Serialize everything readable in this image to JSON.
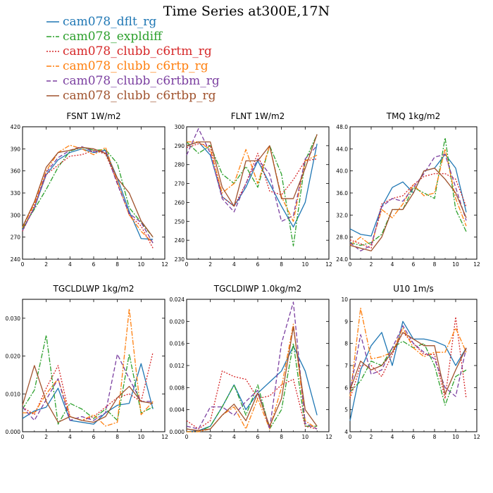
{
  "figure": {
    "title": "Time Series at300E,17N"
  },
  "series": [
    {
      "name": "cam078_dflt_rg",
      "color": "#1f77b4",
      "dash": "solid"
    },
    {
      "name": "cam078_expldiff",
      "color": "#2ca02c",
      "dash": "dashdot"
    },
    {
      "name": "cam078_clubb_c6rtm_rg",
      "color": "#d62728",
      "dash": "dot"
    },
    {
      "name": "cam078_clubb_c6rtp_rg",
      "color": "#ff7f0e",
      "dash": "dashdot"
    },
    {
      "name": "cam078_clubb_c6rtbm_rg",
      "color": "#7b3fa0",
      "dash": "dash"
    },
    {
      "name": "cam078_clubb_c6rtbp_rg",
      "color": "#a0522d",
      "dash": "solid"
    }
  ],
  "chart_data": [
    {
      "type": "line",
      "title": "FSNT   1W/m2",
      "x": [
        0,
        1,
        2,
        3,
        4,
        5,
        6,
        7,
        8,
        9,
        10,
        11
      ],
      "xlim": [
        0,
        12
      ],
      "xticks": [
        "0",
        "2",
        "4",
        "6",
        "8",
        "10",
        "12"
      ],
      "ylim": [
        240,
        420
      ],
      "yticks": [
        "240",
        "270",
        "300",
        "330",
        "360",
        "390",
        "420"
      ],
      "series": [
        {
          "values": [
            280,
            310,
            355,
            375,
            385,
            390,
            385,
            388,
            350,
            305,
            268,
            267
          ]
        },
        {
          "values": [
            282,
            308,
            335,
            365,
            387,
            392,
            388,
            389,
            370,
            310,
            290,
            270
          ]
        },
        {
          "values": [
            278,
            312,
            355,
            368,
            380,
            382,
            388,
            383,
            345,
            300,
            285,
            255
          ]
        },
        {
          "values": [
            283,
            315,
            360,
            385,
            395,
            390,
            382,
            392,
            345,
            300,
            278,
            262
          ]
        },
        {
          "values": [
            279,
            310,
            358,
            378,
            388,
            393,
            386,
            387,
            342,
            302,
            290,
            262
          ]
        },
        {
          "values": [
            284,
            318,
            365,
            385,
            388,
            392,
            390,
            384,
            350,
            330,
            292,
            270
          ]
        }
      ]
    },
    {
      "type": "line",
      "title": "FLNT   1W/m2",
      "x": [
        0,
        1,
        2,
        3,
        4,
        5,
        6,
        7,
        8,
        9,
        10,
        11
      ],
      "xlim": [
        0,
        12
      ],
      "xticks": [
        "0",
        "2",
        "4",
        "6",
        "8",
        "10",
        "12"
      ],
      "ylim": [
        230,
        300
      ],
      "yticks": [
        "230",
        "240",
        "250",
        "260",
        "270",
        "280",
        "290",
        "300"
      ],
      "series": [
        {
          "values": [
            290,
            292,
            285,
            263,
            258,
            268,
            282,
            270,
            258,
            247,
            260,
            291
          ]
        },
        {
          "values": [
            292,
            286,
            290,
            275,
            270,
            279,
            268,
            290,
            275,
            237,
            282,
            296
          ]
        },
        {
          "values": [
            289,
            291,
            290,
            263,
            258,
            270,
            286,
            266,
            264,
            272,
            282,
            283
          ]
        },
        {
          "values": [
            292,
            292,
            288,
            265,
            270,
            288,
            270,
            290,
            263,
            250,
            282,
            285
          ]
        },
        {
          "values": [
            285,
            299,
            286,
            262,
            255,
            270,
            283,
            275,
            250,
            253,
            283,
            290
          ]
        },
        {
          "values": [
            290,
            292,
            292,
            268,
            258,
            282,
            282,
            290,
            262,
            262,
            278,
            296
          ]
        }
      ]
    },
    {
      "type": "line",
      "title": "TMQ   1kg/m2",
      "x": [
        0,
        1,
        2,
        3,
        4,
        5,
        6,
        7,
        8,
        9,
        10,
        11
      ],
      "xlim": [
        0,
        12
      ],
      "xticks": [
        "0",
        "2",
        "4",
        "6",
        "8",
        "10",
        "12"
      ],
      "ylim": [
        24,
        48
      ],
      "yticks": [
        "24.0",
        "28.0",
        "32.0",
        "36.0",
        "40.0",
        "44.0",
        "48.0"
      ],
      "series": [
        {
          "values": [
            29.5,
            28.5,
            28.2,
            33.5,
            37.0,
            38.0,
            36.0,
            40.0,
            40.5,
            43.0,
            40.5,
            32.5
          ]
        },
        {
          "values": [
            27.0,
            26.5,
            27.0,
            28.5,
            33.0,
            33.0,
            37.0,
            36.0,
            35.0,
            46.0,
            33.0,
            29.0
          ]
        },
        {
          "values": [
            27.5,
            26.8,
            26.0,
            34.0,
            35.0,
            35.5,
            37.5,
            39.0,
            39.5,
            39.5,
            38.5,
            33.5
          ]
        },
        {
          "values": [
            26.5,
            28.0,
            26.5,
            33.0,
            31.5,
            34.0,
            37.5,
            35.5,
            36.0,
            44.0,
            35.0,
            30.0
          ]
        },
        {
          "values": [
            27.0,
            25.5,
            26.5,
            33.5,
            35.0,
            34.5,
            37.0,
            39.5,
            42.5,
            43.0,
            37.0,
            31.0
          ]
        },
        {
          "values": [
            26.5,
            26.0,
            25.5,
            28.0,
            33.0,
            33.0,
            36.0,
            40.0,
            40.5,
            38.5,
            36.0,
            31.5
          ]
        }
      ]
    },
    {
      "type": "line",
      "title": "TGCLDLWP   1kg/m2",
      "x": [
        0,
        1,
        2,
        3,
        4,
        5,
        6,
        7,
        8,
        9,
        10,
        11
      ],
      "xlim": [
        0,
        12
      ],
      "xticks": [
        "0",
        "2",
        "4",
        "6",
        "8",
        "10",
        "12"
      ],
      "ylim": [
        0,
        0.035
      ],
      "yticks": [
        "0.000",
        "0.010",
        "0.020",
        "0.030"
      ],
      "series": [
        {
          "values": [
            0.0035,
            0.0055,
            0.0065,
            0.0115,
            0.003,
            0.0025,
            0.002,
            0.005,
            0.007,
            0.0075,
            0.018,
            0.006
          ]
        },
        {
          "values": [
            0.006,
            0.011,
            0.0255,
            0.002,
            0.0075,
            0.006,
            0.0035,
            0.006,
            0.003,
            0.0205,
            0.005,
            0.0065
          ]
        },
        {
          "values": [
            0.0065,
            0.0045,
            0.0115,
            0.0175,
            0.004,
            0.003,
            0.004,
            0.0065,
            0.009,
            0.01,
            0.008,
            0.021
          ]
        },
        {
          "values": [
            0.005,
            0.005,
            0.01,
            0.014,
            0.004,
            0.003,
            0.0045,
            0.0015,
            0.0025,
            0.0325,
            0.0045,
            0.008
          ]
        },
        {
          "values": [
            0.0065,
            0.003,
            0.0085,
            0.014,
            0.003,
            0.004,
            0.003,
            0.005,
            0.0205,
            0.014,
            0.008,
            0.008
          ]
        },
        {
          "values": [
            0.007,
            0.0175,
            0.008,
            0.0025,
            0.004,
            0.003,
            0.0025,
            0.004,
            0.009,
            0.012,
            0.008,
            0.0075
          ]
        }
      ]
    },
    {
      "type": "line",
      "title": "TGCLDIWP   1.0kg/m2",
      "x": [
        0,
        1,
        2,
        3,
        4,
        5,
        6,
        7,
        8,
        9,
        10,
        11
      ],
      "xlim": [
        0,
        12
      ],
      "xticks": [
        "0",
        "2",
        "4",
        "6",
        "8",
        "10",
        "12"
      ],
      "ylim": [
        0,
        0.024
      ],
      "yticks": [
        "0.000",
        "0.004",
        "0.008",
        "0.012",
        "0.016",
        "0.020",
        "0.024"
      ],
      "series": [
        {
          "values": [
            0.0,
            0.0002,
            0.001,
            0.0045,
            0.0085,
            0.004,
            0.007,
            0.009,
            0.011,
            0.0155,
            0.011,
            0.003
          ]
        },
        {
          "values": [
            0.0,
            0.0,
            0.001,
            0.0045,
            0.0085,
            0.003,
            0.0085,
            0.0005,
            0.004,
            0.016,
            0.001,
            0.001
          ]
        },
        {
          "values": [
            0.002,
            0.0005,
            0.002,
            0.011,
            0.01,
            0.0095,
            0.006,
            0.0065,
            0.0085,
            0.0095,
            0.001,
            0.0005
          ]
        },
        {
          "values": [
            0.0,
            0.0,
            0.0005,
            0.003,
            0.0045,
            0.0005,
            0.006,
            0.0005,
            0.008,
            0.0195,
            0.002,
            0.0005
          ]
        },
        {
          "values": [
            0.001,
            0.0005,
            0.0045,
            0.0045,
            0.003,
            0.0055,
            0.0075,
            0.0005,
            0.016,
            0.0235,
            0.0015,
            0.0005
          ]
        },
        {
          "values": [
            0.0005,
            0.0002,
            0.0005,
            0.003,
            0.005,
            0.002,
            0.007,
            0.001,
            0.006,
            0.019,
            0.004,
            0.001
          ]
        }
      ]
    },
    {
      "type": "line",
      "title": "U10   1m/s",
      "x": [
        0,
        1,
        2,
        3,
        4,
        5,
        6,
        7,
        8,
        9,
        10,
        11
      ],
      "xlim": [
        0,
        12
      ],
      "xticks": [
        "0",
        "2",
        "4",
        "6",
        "8",
        "10",
        "12"
      ],
      "ylim": [
        4,
        10
      ],
      "yticks": [
        "4",
        "5",
        "6",
        "7",
        "8",
        "9",
        "10"
      ],
      "series": [
        {
          "values": [
            4.5,
            6.8,
            7.9,
            8.5,
            7.0,
            9.0,
            8.2,
            8.2,
            8.1,
            7.9,
            7.0,
            7.8
          ]
        },
        {
          "values": [
            5.8,
            6.3,
            7.2,
            7.0,
            7.8,
            8.1,
            7.8,
            8.0,
            7.0,
            5.2,
            6.5,
            6.8
          ]
        },
        {
          "values": [
            5.5,
            7.0,
            7.0,
            6.5,
            7.5,
            8.5,
            8.0,
            7.5,
            7.5,
            5.5,
            9.2,
            5.5
          ]
        },
        {
          "values": [
            5.6,
            9.6,
            7.3,
            7.4,
            7.6,
            8.7,
            7.8,
            7.4,
            7.6,
            7.6,
            8.7,
            7.6
          ]
        },
        {
          "values": [
            5.8,
            8.4,
            6.6,
            6.8,
            7.8,
            8.8,
            8.0,
            7.6,
            7.3,
            6.0,
            5.6,
            7.8
          ]
        },
        {
          "values": [
            5.9,
            7.2,
            6.8,
            7.0,
            7.6,
            8.5,
            8.2,
            7.9,
            7.9,
            5.7,
            6.8,
            7.8
          ]
        }
      ]
    }
  ]
}
